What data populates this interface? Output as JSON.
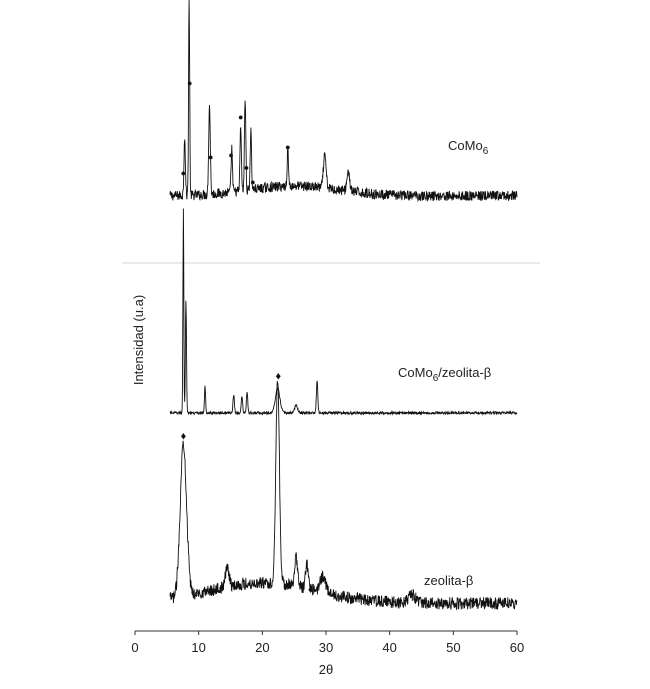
{
  "chart_data": {
    "type": "line",
    "title": "",
    "xlabel": "2θ",
    "ylabel": "Intensidad  (u.a)",
    "xlim": [
      0,
      60
    ],
    "x_ticks": [
      "0",
      "10",
      "20",
      "30",
      "40",
      "50",
      "60"
    ],
    "grid": false,
    "legend": "none",
    "colors": {
      "line": "#111111",
      "axis": "#333333",
      "separator": "#d6d6d6"
    },
    "series": [
      {
        "label_main": "CoMo",
        "label_sub": "6",
        "label_rest": "",
        "marker": "●",
        "baseline": 0.08,
        "noise": 0.025,
        "peaks": [
          {
            "x": 7.8,
            "h": 0.3,
            "w": 0.15
          },
          {
            "x": 8.5,
            "h": 1.0,
            "w": 0.12
          },
          {
            "x": 11.7,
            "h": 0.45,
            "w": 0.18
          },
          {
            "x": 15.2,
            "h": 0.22,
            "w": 0.15
          },
          {
            "x": 16.6,
            "h": 0.33,
            "w": 0.15
          },
          {
            "x": 17.3,
            "h": 0.46,
            "w": 0.15
          },
          {
            "x": 18.2,
            "h": 0.3,
            "w": 0.15
          },
          {
            "x": 24.0,
            "h": 0.18,
            "w": 0.15
          },
          {
            "x": 29.8,
            "h": 0.16,
            "w": 0.3
          },
          {
            "x": 33.5,
            "h": 0.1,
            "w": 0.3
          }
        ],
        "markers_x": [
          7.6,
          8.6,
          11.9,
          15.1,
          16.6,
          17.5,
          18.5,
          24.0
        ]
      },
      {
        "label_main": "CoMo",
        "label_sub": "6",
        "label_rest": "/zeolita-β",
        "marker": "♦",
        "baseline": 0.02,
        "noise": 0.006,
        "peaks": [
          {
            "x": 7.6,
            "h": 1.0,
            "w": 0.1
          },
          {
            "x": 8.0,
            "h": 0.55,
            "w": 0.12
          },
          {
            "x": 11.0,
            "h": 0.13,
            "w": 0.12
          },
          {
            "x": 15.5,
            "h": 0.09,
            "w": 0.15
          },
          {
            "x": 16.8,
            "h": 0.08,
            "w": 0.15
          },
          {
            "x": 17.6,
            "h": 0.1,
            "w": 0.15
          },
          {
            "x": 22.4,
            "h": 0.12,
            "w": 0.5
          },
          {
            "x": 25.3,
            "h": 0.04,
            "w": 0.3
          },
          {
            "x": 28.6,
            "h": 0.16,
            "w": 0.15
          }
        ],
        "markers_x": [
          22.5
        ]
      },
      {
        "label_main": "zeolita-β",
        "label_sub": "",
        "label_rest": "",
        "marker": "♦",
        "baseline": 0.12,
        "noise": 0.03,
        "peaks": [
          {
            "x": 7.6,
            "h": 0.75,
            "w": 0.7
          },
          {
            "x": 14.5,
            "h": 0.1,
            "w": 0.4
          },
          {
            "x": 22.4,
            "h": 1.0,
            "w": 0.4
          },
          {
            "x": 25.3,
            "h": 0.14,
            "w": 0.35
          },
          {
            "x": 27.0,
            "h": 0.12,
            "w": 0.3
          },
          {
            "x": 29.5,
            "h": 0.08,
            "w": 0.6
          },
          {
            "x": 43.5,
            "h": 0.04,
            "w": 0.8
          }
        ],
        "markers_x": [
          7.6,
          27.6
        ]
      }
    ]
  }
}
